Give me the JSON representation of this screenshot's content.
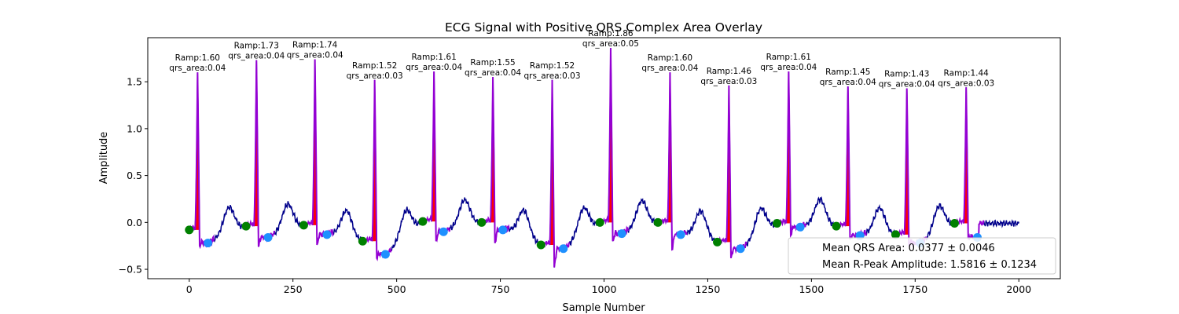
{
  "chart_data": {
    "type": "line",
    "title": "ECG Signal with Positive QRS Complex Area Overlay",
    "xlabel": "Sample Number",
    "ylabel": "Amplitude",
    "xlim": [
      -100,
      2100
    ],
    "ylim": [
      -0.6,
      1.97
    ],
    "xticks": [
      0,
      250,
      500,
      750,
      1000,
      1250,
      1500,
      1750,
      2000
    ],
    "yticks": [
      -0.5,
      0.0,
      0.5,
      1.0,
      1.5
    ],
    "xtick_labels": [
      "0",
      "250",
      "500",
      "750",
      "1000",
      "1250",
      "1500",
      "1750",
      "2000"
    ],
    "ytick_labels": [
      "−0.5",
      "0.0",
      "0.5",
      "1.0",
      "1.5"
    ],
    "grid": false,
    "colors": {
      "ecg": "#00008b",
      "qrs_segment": "#9400d3",
      "qrs_area_fill": "#ff0000",
      "onset_marker": "#008000",
      "offset_marker": "#1e90ff"
    },
    "beats": [
      {
        "r": 20,
        "ramp": 1.6,
        "area": "0.04",
        "onset": [
          0,
          -0.08
        ],
        "offset": [
          45,
          -0.22
        ],
        "post_min": -0.25
      },
      {
        "r": 162,
        "ramp": 1.73,
        "area": "0.04",
        "onset": [
          137,
          -0.04
        ],
        "offset": [
          190,
          -0.16
        ],
        "post_min": -0.26
      },
      {
        "r": 303,
        "ramp": 1.74,
        "area": "0.04",
        "onset": [
          276,
          -0.03
        ],
        "offset": [
          332,
          -0.13
        ],
        "post_min": -0.24
      },
      {
        "r": 447,
        "ramp": 1.52,
        "area": "0.03",
        "onset": [
          418,
          -0.2
        ],
        "offset": [
          473,
          -0.34
        ],
        "post_min": -0.38
      },
      {
        "r": 590,
        "ramp": 1.61,
        "area": "0.04",
        "onset": [
          563,
          0.01
        ],
        "offset": [
          613,
          -0.1
        ],
        "post_min": -0.2
      },
      {
        "r": 732,
        "ramp": 1.55,
        "area": "0.04",
        "onset": [
          705,
          0.0
        ],
        "offset": [
          756,
          -0.08
        ],
        "post_min": -0.22
      },
      {
        "r": 875,
        "ramp": 1.52,
        "area": "0.03",
        "onset": [
          848,
          -0.24
        ],
        "offset": [
          902,
          -0.28
        ],
        "post_min": -0.48
      },
      {
        "r": 1016,
        "ramp": 1.86,
        "area": "0.05",
        "onset": [
          990,
          0.0
        ],
        "offset": [
          1043,
          -0.12
        ],
        "post_min": -0.2
      },
      {
        "r": 1159,
        "ramp": 1.6,
        "area": "0.04",
        "onset": [
          1130,
          0.0
        ],
        "offset": [
          1185,
          -0.13
        ],
        "post_min": -0.29
      },
      {
        "r": 1301,
        "ramp": 1.46,
        "area": "0.03",
        "onset": [
          1273,
          -0.21
        ],
        "offset": [
          1329,
          -0.28
        ],
        "post_min": -0.38
      },
      {
        "r": 1445,
        "ramp": 1.61,
        "area": "0.04",
        "onset": [
          1417,
          -0.01
        ],
        "offset": [
          1473,
          -0.05
        ],
        "post_min": -0.14
      },
      {
        "r": 1588,
        "ramp": 1.45,
        "area": "0.04",
        "onset": [
          1560,
          -0.04
        ],
        "offset": [
          1617,
          -0.14
        ],
        "post_min": -0.18
      },
      {
        "r": 1730,
        "ramp": 1.43,
        "area": "0.04",
        "onset": [
          1703,
          -0.13
        ],
        "offset": [
          1762,
          -0.22
        ],
        "post_min": -0.24
      },
      {
        "r": 1873,
        "ramp": 1.44,
        "area": "0.03",
        "onset": [
          1845,
          -0.01
        ],
        "offset": [
          1900,
          -0.16
        ],
        "post_min": -0.18
      }
    ],
    "annotation_templates": {
      "ramp_prefix": "Ramp:",
      "area_prefix": "qrs_area:"
    },
    "legend": {
      "position": "lower right",
      "entries": [
        "Mean QRS Area: 0.0377 ± 0.0046",
        "Mean R-Peak Amplitude: 1.5816 ± 0.1234"
      ]
    }
  }
}
